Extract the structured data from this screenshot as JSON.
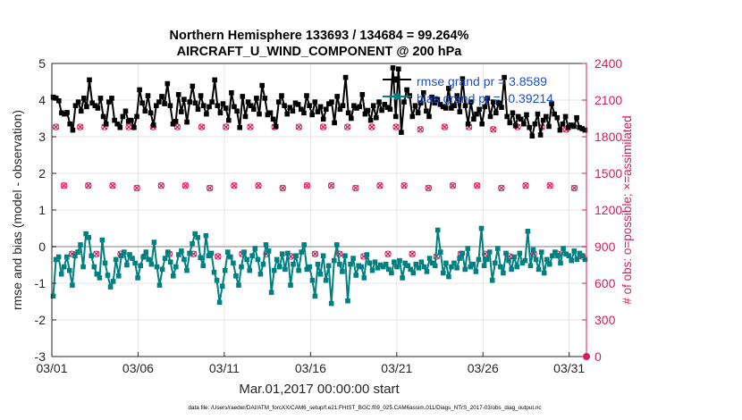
{
  "chart_data": {
    "type": "line",
    "title_line1": "Northern Hemisphere 133693 / 134684 = 99.264%",
    "title_line2": "AIRCRAFT_U_WIND_COMPONENT @ 200 hPa",
    "xlabel": "Mar.01,2017 00:00:00 start",
    "ylabel_left": "rmse and bias (model - observation)",
    "ylabel_right": "# of obs: o=possible; ×=assimilated",
    "footer": "data file: /Users/raeder/DAI/ATM_forcXX/CAM6_setup/f.e21.FHIST_BGC.f09_025.CAM6assim.011/Diags_NTrS_2017-03/obs_diag_output.nc",
    "xlim": [
      1,
      32
    ],
    "x_ticks": [
      1,
      6,
      11,
      16,
      21,
      26,
      31
    ],
    "x_tick_labels": [
      "03/01",
      "03/06",
      "03/11",
      "03/16",
      "03/21",
      "03/26",
      "03/31"
    ],
    "ylim_left": [
      -3,
      5
    ],
    "y_ticks_left": [
      -3,
      -2,
      -1,
      0,
      1,
      2,
      3,
      4,
      5
    ],
    "ylim_right": [
      0,
      2400
    ],
    "y_ticks_right": [
      0,
      300,
      600,
      900,
      1200,
      1500,
      1800,
      2100,
      2400
    ],
    "legend_position": "top-right",
    "colors": {
      "rmse": "#000000",
      "bias": "#008080",
      "obs": "#d81b60",
      "zero": "#bfbfbf",
      "legend_text": "#1a4fd0",
      "axis": "#262626"
    },
    "series": [
      {
        "name": "rmse grand pr = 3.8589",
        "axis": "left",
        "values": [
          4.08,
          4.05,
          3.98,
          3.65,
          3.62,
          3.66,
          3.35,
          3.18,
          3.85,
          3.95,
          3.7,
          4.05,
          3.82,
          4.55,
          3.92,
          3.85,
          3.78,
          4.05,
          3.55,
          3.35,
          3.95,
          4.05,
          3.45,
          3.35,
          3.25,
          3.55,
          3.7,
          3.42,
          3.45,
          3.25,
          3.55,
          4.28,
          3.92,
          3.7,
          4.12,
          3.65,
          3.32,
          3.85,
          3.95,
          4.1,
          3.9,
          4.45,
          3.85,
          3.35,
          3.42,
          4.15,
          3.68,
          4.02,
          3.4,
          3.95,
          4.38,
          3.92,
          3.75,
          4.12,
          3.85,
          3.62,
          3.82,
          3.95,
          4.55,
          3.85,
          3.65,
          3.9,
          3.78,
          3.45,
          4.2,
          3.82,
          3.7,
          3.25,
          4.1,
          3.55,
          3.95,
          3.85,
          3.75,
          4.05,
          3.62,
          4.4,
          4.05,
          3.6,
          3.65,
          3.48,
          3.28,
          3.95,
          4.12,
          3.85,
          3.62,
          3.8,
          3.7,
          3.92,
          3.88,
          3.75,
          3.65,
          4.12,
          3.85,
          3.6,
          3.95,
          3.68,
          3.82,
          3.48,
          3.75,
          3.9,
          3.95,
          3.38,
          4.1,
          3.75,
          3.85,
          4.62,
          3.65,
          3.5,
          3.85,
          3.78,
          3.82,
          4.15,
          3.62,
          3.72,
          3.45,
          3.85,
          3.52,
          3.95,
          3.72,
          3.88,
          3.8,
          3.75,
          4.88,
          3.55,
          4.85,
          3.12,
          3.95,
          4.28,
          4.12,
          3.55,
          3.85,
          3.65,
          3.92,
          4.2,
          3.7,
          3.55,
          4.08,
          3.92,
          4.02,
          3.88,
          3.82,
          3.78,
          4.32,
          3.78,
          3.85,
          4.12,
          3.68,
          4.58,
          3.85,
          3.35,
          3.95,
          3.48,
          3.62,
          3.75,
          3.35,
          3.82,
          4.05,
          3.55,
          3.95,
          3.65,
          3.92,
          3.8,
          4.62,
          3.55,
          3.38,
          3.65,
          3.3,
          3.55,
          3.48,
          3.35,
          3.6,
          3.25,
          3.02,
          3.35,
          3.62,
          3.05,
          3.45,
          3.55,
          3.28,
          3.9,
          3.62,
          3.52,
          3.18,
          3.35,
          3.55,
          3.25,
          3.32,
          3.28,
          3.52,
          3.25,
          3.22,
          3.18
        ]
      },
      {
        "name": "bias grand pr = -0.39214",
        "axis": "left",
        "values": [
          -1.35,
          -0.35,
          -0.28,
          -0.75,
          -0.55,
          -0.28,
          -0.65,
          -1.05,
          -0.25,
          -0.15,
          0.05,
          -0.55,
          0.35,
          0.25,
          -0.25,
          -0.55,
          -0.75,
          -0.85,
          0.18,
          -0.45,
          -0.78,
          -1.1,
          -0.95,
          -0.35,
          -0.8,
          -0.25,
          -0.15,
          -0.5,
          -0.22,
          -0.32,
          -0.45,
          -0.85,
          -0.52,
          -0.28,
          -0.15,
          -0.35,
          -0.48,
          0.12,
          -0.55,
          -1.05,
          -0.62,
          -0.32,
          -0.15,
          -0.42,
          -0.8,
          -0.55,
          -0.22,
          -0.12,
          -0.35,
          -0.65,
          -0.18,
          0.08,
          0.35,
          0.25,
          -0.3,
          -0.52,
          0.3,
          -0.25,
          -0.18,
          -0.7,
          -0.92,
          -1.52,
          -1.08,
          -0.65,
          -0.15,
          -0.28,
          -0.45,
          -0.8,
          -1.05,
          -0.55,
          -0.15,
          -0.35,
          -0.65,
          -0.25,
          -0.05,
          -0.35,
          -0.75,
          -0.48,
          0.05,
          -0.12,
          -1.25,
          -0.65,
          -0.35,
          -0.55,
          -0.2,
          -0.62,
          -0.18,
          -1.05,
          -0.48,
          -0.25,
          -0.65,
          -0.15,
          0.05,
          -0.62,
          -0.55,
          -0.92,
          -1.35,
          -0.48,
          -0.75,
          -0.25,
          -0.92,
          -0.52,
          -1.55,
          -0.38,
          0.05,
          -0.48,
          -0.68,
          -0.25,
          -1.48,
          -0.48,
          -0.32,
          -0.78,
          -0.52,
          -0.55,
          -0.85,
          -0.22,
          -0.45,
          -0.65,
          -0.42,
          -0.58,
          -0.5,
          -0.55,
          -0.48,
          -0.62,
          -0.72,
          -0.42,
          -0.55,
          -0.38,
          -0.85,
          -0.45,
          -0.52,
          -0.62,
          -0.72,
          -0.48,
          -0.58,
          -0.42,
          -0.55,
          -0.68,
          -0.32,
          -0.45,
          -0.52,
          0.45,
          -0.15,
          -0.72,
          -0.45,
          -0.82,
          -0.55,
          -0.45,
          -0.58,
          -0.32,
          -0.18,
          -0.62,
          -0.05,
          -0.55,
          -0.48,
          -0.68,
          -0.35,
          0.5,
          -0.52,
          -0.35,
          -0.15,
          -0.92,
          -0.45,
          -0.05,
          -0.55,
          -0.72,
          -0.18,
          -0.38,
          -0.62,
          -0.28,
          -0.55,
          -0.18,
          -0.45,
          -0.38,
          0.42,
          -0.52,
          -0.08,
          -0.35,
          -0.62,
          -0.15,
          -0.72,
          -0.35,
          -0.48,
          -0.25,
          -0.15,
          -0.25,
          -0.45,
          -0.05,
          -0.2,
          -0.25,
          -0.38,
          -0.12,
          -0.35,
          -0.18,
          -0.25,
          -0.35
        ]
      },
      {
        "name": "possible",
        "axis": "right",
        "marker": "o",
        "values": [
          1880,
          1400,
          840,
          1880,
          1400,
          840,
          1880,
          1400,
          840,
          1880,
          1380,
          820,
          1880,
          1400,
          840,
          1880,
          1400,
          840,
          1880,
          1380,
          820,
          1880,
          1400,
          840,
          1880,
          1400,
          840,
          1880,
          1380,
          820,
          1880,
          1400,
          840,
          1880,
          1400,
          840,
          1880,
          1380,
          820,
          1880,
          1400,
          840,
          1880,
          1400,
          840,
          1860,
          1380,
          820,
          1880,
          1400,
          840,
          1880,
          1400,
          840,
          1860,
          1380,
          820,
          1880,
          1400,
          840,
          1880,
          1400,
          840,
          1860,
          1380,
          820
        ]
      },
      {
        "name": "assimilated",
        "axis": "right",
        "marker": "x",
        "values": [
          1880,
          1400,
          840,
          1880,
          1400,
          840,
          1880,
          1400,
          840,
          1880,
          1380,
          820,
          1880,
          1400,
          840,
          1880,
          1400,
          840,
          1880,
          1380,
          820,
          1880,
          1400,
          840,
          1880,
          1400,
          840,
          1880,
          1380,
          820,
          1880,
          1400,
          840,
          1880,
          1400,
          840,
          1880,
          1380,
          820,
          1880,
          1400,
          840,
          1880,
          1400,
          840,
          1860,
          1380,
          820,
          1880,
          1400,
          840,
          1880,
          1400,
          840,
          1860,
          1380,
          820,
          1880,
          1400,
          840,
          1880,
          1400,
          840,
          1860,
          1380,
          820
        ]
      }
    ]
  }
}
